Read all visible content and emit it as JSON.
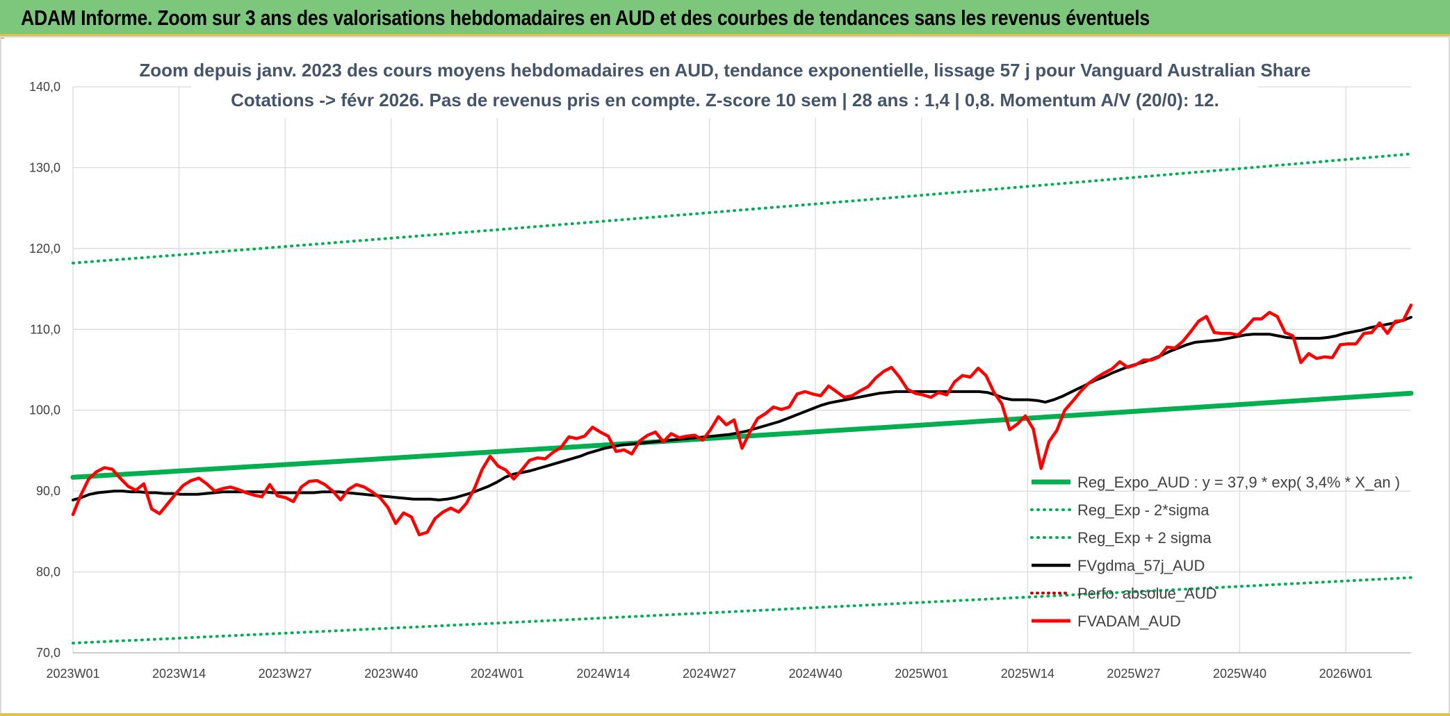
{
  "banner": {
    "title": "ADAM Informe. Zoom sur 3 ans des valorisations hebdomadaires en AUD et des courbes de tendances sans les revenus éventuels"
  },
  "colors": {
    "banner_bg": "#7dc77c",
    "accent": "#e3c046",
    "reg_green": "#00b050",
    "sigma_green": "#00b050",
    "fvgdma": "#000000",
    "fvadam": "#ff0000",
    "perfo": "#c00000"
  },
  "chart_data": {
    "type": "line",
    "title": "Zoom depuis janv. 2023 des cours moyens hebdomadaires en AUD, tendance exponentielle, lissage 57 j pour Vanguard Australian Share",
    "subtitle": "Cotations -> févr 2026. Pas de revenus pris en compte. Z-score 10 sem | 28 ans : 1,4 | 0,8. Momentum A/V (20/0): 12.",
    "xlabel": "",
    "ylabel": "",
    "x_range": [
      "2023W01",
      "2026W09"
    ],
    "x_ticks": [
      "2023W01",
      "2023W14",
      "2023W27",
      "2023W40",
      "2024W01",
      "2024W14",
      "2024W27",
      "2024W40",
      "2025W01",
      "2025W14",
      "2025W27",
      "2025W40",
      "2026W01"
    ],
    "ylim": [
      70,
      140
    ],
    "y_ticks": [
      "70,0",
      "80,0",
      "90,0",
      "100,0",
      "110,0",
      "120,0",
      "130,0",
      "140,0"
    ],
    "y_tick_values": [
      70,
      80,
      90,
      100,
      110,
      120,
      130,
      140
    ],
    "grid": true,
    "legend_position": "bottom-right",
    "series": [
      {
        "name": "Reg_Expo_AUD : y = 37,9 * exp( 3,4% *  X_an )",
        "style": "solid-thick",
        "color": "#00b050",
        "start": 91.7,
        "end": 102.1
      },
      {
        "name": "Reg_Exp - 2*sigma",
        "style": "dotted",
        "color": "#00b050",
        "start": 71.2,
        "end": 79.3
      },
      {
        "name": "Reg_Exp + 2 sigma",
        "style": "dotted",
        "color": "#00b050",
        "start": 118.2,
        "end": 131.7
      },
      {
        "name": "FVgdma_57j_AUD",
        "style": "solid",
        "color": "#000000",
        "values": [
          88.9,
          89.2,
          89.6,
          89.8,
          89.9,
          90.0,
          90.0,
          89.9,
          89.9,
          89.8,
          89.8,
          89.7,
          89.7,
          89.6,
          89.6,
          89.6,
          89.7,
          89.8,
          89.9,
          89.9,
          89.9,
          89.9,
          89.9,
          89.9,
          89.8,
          89.8,
          89.8,
          89.8,
          89.8,
          89.8,
          89.9,
          89.9,
          89.9,
          89.8,
          89.7,
          89.6,
          89.5,
          89.4,
          89.3,
          89.2,
          89.1,
          89.0,
          89.0,
          89.0,
          88.9,
          89.0,
          89.2,
          89.5,
          89.8,
          90.2,
          90.6,
          91.1,
          91.7,
          92.1,
          92.3,
          92.5,
          92.8,
          93.1,
          93.4,
          93.7,
          94.0,
          94.3,
          94.7,
          95.0,
          95.3,
          95.5,
          95.7,
          95.8,
          95.9,
          96.0,
          96.1,
          96.2,
          96.3,
          96.4,
          96.5,
          96.6,
          96.7,
          96.8,
          96.9,
          97.0,
          97.2,
          97.4,
          97.7,
          98.0,
          98.3,
          98.6,
          99.0,
          99.4,
          99.8,
          100.2,
          100.6,
          100.9,
          101.1,
          101.3,
          101.5,
          101.7,
          101.9,
          102.1,
          102.2,
          102.3,
          102.3,
          102.3,
          102.3,
          102.3,
          102.3,
          102.3,
          102.3,
          102.3,
          102.3,
          102.3,
          102.2,
          101.9,
          101.5,
          101.3,
          101.3,
          101.3,
          101.2,
          101.0,
          101.3,
          101.7,
          102.2,
          102.7,
          103.2,
          103.7,
          104.1,
          104.6,
          105.0,
          105.4,
          105.7,
          106.0,
          106.4,
          106.8,
          107.3,
          107.7,
          108.1,
          108.4,
          108.5,
          108.6,
          108.7,
          108.9,
          109.1,
          109.3,
          109.4,
          109.4,
          109.4,
          109.2,
          109.0,
          108.9,
          108.9,
          108.9,
          108.9,
          109.0,
          109.2,
          109.5,
          109.7,
          109.9,
          110.2,
          110.4,
          110.6,
          110.8,
          111.1,
          111.5
        ]
      },
      {
        "name": "Perfo. absolue_AUD",
        "style": "dotted",
        "color": "#c00000",
        "values": []
      },
      {
        "name": "FVADAM_AUD",
        "style": "solid-thick",
        "color": "#ff0000",
        "values": [
          87.1,
          89.5,
          91.5,
          92.4,
          92.9,
          92.7,
          91.6,
          90.6,
          90.1,
          90.9,
          87.8,
          87.2,
          88.4,
          89.6,
          90.7,
          91.3,
          91.6,
          90.9,
          90.0,
          90.3,
          90.5,
          90.2,
          89.8,
          89.5,
          89.3,
          90.8,
          89.4,
          89.2,
          88.7,
          90.5,
          91.2,
          91.3,
          90.8,
          90.0,
          88.9,
          90.2,
          90.8,
          90.5,
          89.9,
          89.2,
          88.0,
          86.0,
          87.3,
          86.8,
          84.6,
          84.9,
          86.6,
          87.4,
          87.9,
          87.4,
          88.5,
          90.3,
          92.7,
          94.3,
          93.1,
          92.6,
          91.5,
          92.6,
          93.8,
          94.1,
          94.0,
          94.8,
          95.4,
          96.7,
          96.5,
          96.8,
          97.9,
          97.3,
          96.8,
          94.9,
          95.1,
          94.6,
          96.2,
          96.9,
          97.3,
          96.1,
          97.1,
          96.6,
          96.8,
          96.9,
          96.3,
          97.6,
          99.2,
          98.2,
          98.8,
          95.3,
          97.3,
          99.0,
          99.6,
          100.4,
          100.1,
          100.4,
          102.0,
          102.3,
          102.0,
          101.8,
          103.0,
          102.3,
          101.6,
          101.8,
          102.4,
          102.9,
          104.0,
          104.8,
          105.3,
          104.1,
          102.6,
          102.1,
          101.9,
          101.6,
          102.2,
          101.9,
          103.5,
          104.3,
          104.1,
          105.2,
          104.3,
          102.2,
          100.8,
          97.6,
          98.3,
          99.3,
          97.7,
          92.8,
          96.1,
          97.5,
          100.0,
          101.1,
          102.3,
          103.3,
          104.0,
          104.6,
          105.1,
          106.0,
          105.3,
          105.6,
          106.2,
          106.2,
          106.6,
          107.8,
          107.7,
          108.5,
          109.7,
          111.0,
          111.6,
          109.6,
          109.5,
          109.5,
          109.3,
          110.2,
          111.3,
          111.3,
          112.1,
          111.6,
          109.6,
          109.2,
          105.9,
          107.0,
          106.4,
          106.6,
          106.5,
          108.1,
          108.2,
          108.2,
          109.5,
          109.6,
          110.8,
          109.5,
          111.0,
          111.1,
          113.0
        ]
      }
    ]
  }
}
